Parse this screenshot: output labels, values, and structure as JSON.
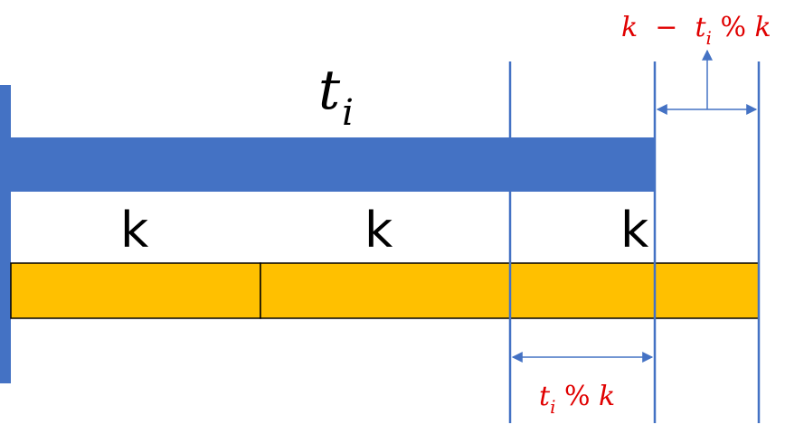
{
  "main_label": {
    "base": "t",
    "subscript": "i"
  },
  "segment_labels": [
    "k",
    "k",
    "k"
  ],
  "remainder_label": {
    "base": "t",
    "subscript": "i",
    "operator": " % ",
    "divisor": "k"
  },
  "gap_label": {
    "lead": "k",
    "minus": "  −  ",
    "base": "t",
    "subscript": "i",
    "operator": " % ",
    "divisor": "k"
  },
  "colors": {
    "blue": "#4472c4",
    "orange": "#ffc000",
    "red": "#e00000",
    "black": "#000000"
  }
}
